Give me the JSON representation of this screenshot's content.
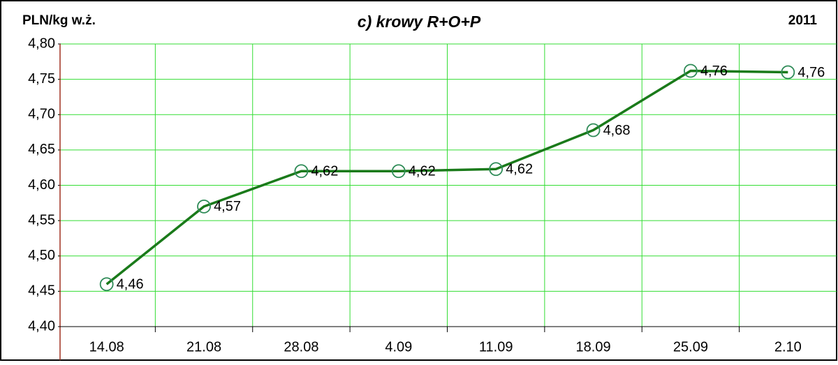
{
  "chart_data": {
    "type": "line",
    "title": "c) krowy R+O+P",
    "y_label": "PLN/kg w.ż.",
    "annotation": "2011",
    "categories": [
      "14.08",
      "21.08",
      "28.08",
      "4.09",
      "11.09",
      "18.09",
      "25.09",
      "2.10"
    ],
    "series": [
      {
        "name": "krowy R+O+P",
        "color": "#1a7a1a",
        "marker_color": "#2e8b57",
        "values": [
          4.46,
          4.57,
          4.62,
          4.62,
          4.623,
          4.678,
          4.762,
          4.76
        ],
        "value_labels": [
          "4,46",
          "4,57",
          "4,62",
          "4,62",
          "4,62",
          "4,68",
          "4,76",
          "4,76"
        ]
      }
    ],
    "ylim": [
      4.4,
      4.8
    ],
    "yticks": [
      {
        "value": 4.4,
        "label": "4,40"
      },
      {
        "value": 4.45,
        "label": "4,45"
      },
      {
        "value": 4.5,
        "label": "4,50"
      },
      {
        "value": 4.55,
        "label": "4,55"
      },
      {
        "value": 4.6,
        "label": "4,60"
      },
      {
        "value": 4.65,
        "label": "4,65"
      },
      {
        "value": 4.7,
        "label": "4,70"
      },
      {
        "value": 4.75,
        "label": "4,75"
      },
      {
        "value": 4.8,
        "label": "4,80"
      }
    ],
    "grid": true,
    "grid_color": "#33dd33"
  }
}
